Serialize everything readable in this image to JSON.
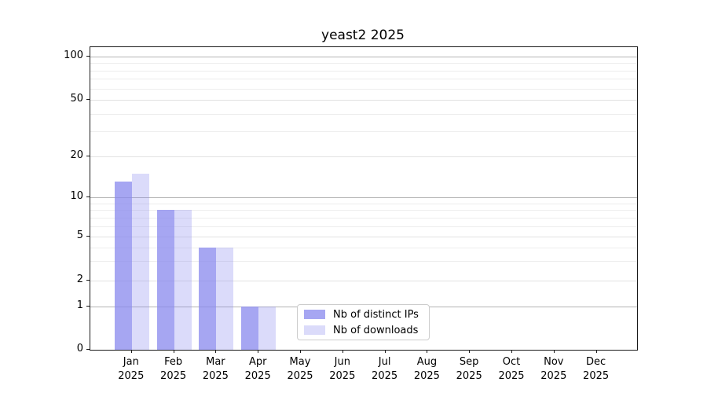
{
  "chart_data": {
    "type": "bar",
    "title": "yeast2 2025",
    "categories": [
      "Jan",
      "Feb",
      "Mar",
      "Apr",
      "May",
      "Jun",
      "Jul",
      "Aug",
      "Sep",
      "Oct",
      "Nov",
      "Dec"
    ],
    "year_label": "2025",
    "series": [
      {
        "name": "Nb of distinct IPs",
        "color": "#8888ee",
        "alpha": 0.75,
        "values": [
          13,
          8,
          4,
          1,
          0,
          0,
          0,
          0,
          0,
          0,
          0,
          0
        ]
      },
      {
        "name": "Nb of downloads",
        "color": "#8888ee",
        "alpha": 0.3,
        "values": [
          15,
          8,
          4,
          1,
          0,
          0,
          0,
          0,
          0,
          0,
          0,
          0
        ]
      }
    ],
    "yaxis": {
      "scale": "symlog",
      "tick_labels": [
        "0",
        "1",
        "2",
        "5",
        "10",
        "20",
        "50",
        "100"
      ],
      "minor_gridlines": [
        3,
        4,
        6,
        7,
        8,
        9,
        30,
        40,
        60,
        70,
        80,
        90
      ],
      "range_approx": [
        0,
        110
      ]
    },
    "xaxis": {
      "tick_label_lines": 2
    },
    "legend": {
      "position": "lower-center-inside"
    },
    "grid": "horizontal, major and minor",
    "colors": {
      "spine": "#1a1a1a",
      "grid_major": "#b4b4b4",
      "grid_minor": "#ededed",
      "text": "#000000"
    }
  }
}
